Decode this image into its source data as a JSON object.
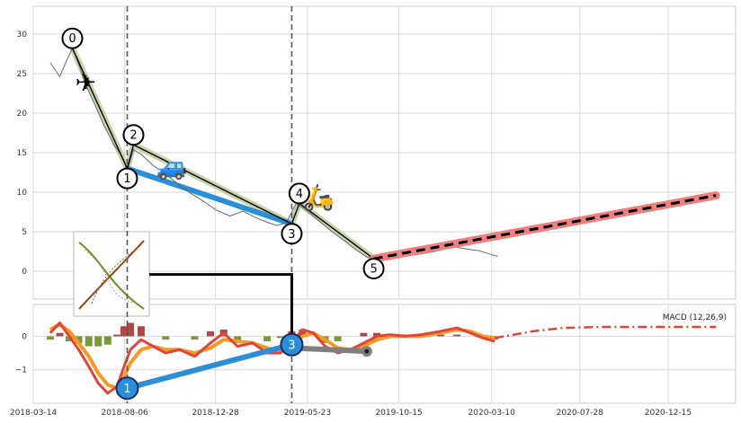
{
  "chart_data": {
    "type": "line",
    "x_ticks": [
      "2018-03-14",
      "2018-08-06",
      "2018-12-28",
      "2019-05-23",
      "2019-10-15",
      "2020-03-10",
      "2020-07-28",
      "2020-12-15"
    ],
    "x_range": [
      "2018-03-14",
      "2021-04-01"
    ],
    "top_panel": {
      "y_range": [
        -3.5,
        33.5
      ],
      "y_ticks": [
        0,
        5,
        10,
        15,
        20,
        25,
        30
      ],
      "grid": true,
      "price_series_color": "#5a6a7e",
      "price_series": [
        {
          "x": "2018-04-10",
          "y": 26.4
        },
        {
          "x": "2018-04-25",
          "y": 24.6
        },
        {
          "x": "2018-05-05",
          "y": 26.5
        },
        {
          "x": "2018-05-15",
          "y": 28.2
        },
        {
          "x": "2018-05-25",
          "y": 26.2
        },
        {
          "x": "2018-06-05",
          "y": 23.6
        },
        {
          "x": "2018-06-20",
          "y": 21.0
        },
        {
          "x": "2018-07-05",
          "y": 18.3
        },
        {
          "x": "2018-07-20",
          "y": 16.0
        },
        {
          "x": "2018-08-01",
          "y": 14.6
        },
        {
          "x": "2018-08-10",
          "y": 12.8
        },
        {
          "x": "2018-08-20",
          "y": 15.4
        },
        {
          "x": "2018-09-01",
          "y": 14.8
        },
        {
          "x": "2018-09-20",
          "y": 13.4
        },
        {
          "x": "2018-10-10",
          "y": 12.3
        },
        {
          "x": "2018-10-30",
          "y": 11.0
        },
        {
          "x": "2018-11-20",
          "y": 9.8
        },
        {
          "x": "2018-12-10",
          "y": 8.8
        },
        {
          "x": "2018-12-28",
          "y": 7.8
        },
        {
          "x": "2019-01-20",
          "y": 7.0
        },
        {
          "x": "2019-02-10",
          "y": 7.6
        },
        {
          "x": "2019-03-01",
          "y": 6.8
        },
        {
          "x": "2019-03-20",
          "y": 6.2
        },
        {
          "x": "2019-04-05",
          "y": 5.8
        },
        {
          "x": "2019-04-20",
          "y": 6.2
        },
        {
          "x": "2019-05-05",
          "y": 8.6
        },
        {
          "x": "2019-05-20",
          "y": 7.8
        },
        {
          "x": "2019-06-10",
          "y": 6.4
        },
        {
          "x": "2019-07-01",
          "y": 5.0
        },
        {
          "x": "2019-07-20",
          "y": 3.9
        },
        {
          "x": "2019-08-05",
          "y": 2.9
        },
        {
          "x": "2019-08-25",
          "y": 1.8
        },
        {
          "x": "2019-09-10",
          "y": 1.6
        },
        {
          "x": "2019-09-25",
          "y": 2.0
        },
        {
          "x": "2019-10-15",
          "y": 2.2
        },
        {
          "x": "2019-11-10",
          "y": 2.1
        },
        {
          "x": "2019-12-10",
          "y": 2.5
        },
        {
          "x": "2020-01-10",
          "y": 3.1
        },
        {
          "x": "2020-02-01",
          "y": 2.8
        },
        {
          "x": "2020-02-20",
          "y": 2.6
        },
        {
          "x": "2020-03-10",
          "y": 2.1
        },
        {
          "x": "2020-03-20",
          "y": 1.9
        }
      ],
      "pattern_points": [
        {
          "label": "0",
          "x": "2018-05-15",
          "y": 28.2
        },
        {
          "label": "1",
          "x": "2018-08-10",
          "y": 13.0
        },
        {
          "label": "2",
          "x": "2018-08-20",
          "y": 16.0
        },
        {
          "label": "3",
          "x": "2019-04-28",
          "y": 6.0
        },
        {
          "label": "4",
          "x": "2019-05-10",
          "y": 8.6
        },
        {
          "label": "5",
          "x": "2019-09-05",
          "y": 1.6
        }
      ],
      "pattern_label_offsets_note": "",
      "blue_segment": [
        {
          "x": "2018-08-10",
          "y": 13.0
        },
        {
          "x": "2019-04-28",
          "y": 6.0
        }
      ],
      "forecast": [
        {
          "x": "2019-09-05",
          "y": 1.6
        },
        {
          "x": "2021-03-01",
          "y": 9.6
        }
      ],
      "vertical_markers": [
        "2018-08-10",
        "2019-04-28"
      ],
      "icons": [
        "airplane-icon",
        "car-icon",
        "scooter-icon"
      ]
    },
    "bottom_panel": {
      "y_range": [
        -2.0,
        0.95
      ],
      "y_ticks": [
        0,
        -1
      ],
      "legend_text": "MACD (12,26,9)",
      "legend_placement": "top-right",
      "macd": [
        {
          "x": "2018-04-10",
          "y": 0.1
        },
        {
          "x": "2018-04-25",
          "y": 0.4
        },
        {
          "x": "2018-05-10",
          "y": 0.0
        },
        {
          "x": "2018-05-25",
          "y": -0.4
        },
        {
          "x": "2018-06-10",
          "y": -0.9
        },
        {
          "x": "2018-06-25",
          "y": -1.4
        },
        {
          "x": "2018-07-10",
          "y": -1.7
        },
        {
          "x": "2018-07-25",
          "y": -1.5
        },
        {
          "x": "2018-08-05",
          "y": -0.9
        },
        {
          "x": "2018-08-15",
          "y": -0.4
        },
        {
          "x": "2018-09-01",
          "y": -0.1
        },
        {
          "x": "2018-09-20",
          "y": -0.3
        },
        {
          "x": "2018-10-10",
          "y": -0.5
        },
        {
          "x": "2018-11-01",
          "y": -0.4
        },
        {
          "x": "2018-11-25",
          "y": -0.6
        },
        {
          "x": "2018-12-20",
          "y": -0.2
        },
        {
          "x": "2019-01-10",
          "y": 0.1
        },
        {
          "x": "2019-02-01",
          "y": -0.3
        },
        {
          "x": "2019-02-25",
          "y": -0.2
        },
        {
          "x": "2019-03-20",
          "y": -0.5
        },
        {
          "x": "2019-04-10",
          "y": -0.5
        },
        {
          "x": "2019-04-28",
          "y": -0.2
        },
        {
          "x": "2019-05-15",
          "y": 0.2
        },
        {
          "x": "2019-06-01",
          "y": 0.1
        },
        {
          "x": "2019-06-20",
          "y": -0.3
        },
        {
          "x": "2019-07-10",
          "y": -0.5
        },
        {
          "x": "2019-07-30",
          "y": -0.4
        },
        {
          "x": "2019-08-20",
          "y": -0.2
        },
        {
          "x": "2019-09-10",
          "y": 0.0
        },
        {
          "x": "2019-10-01",
          "y": 0.05
        },
        {
          "x": "2019-10-25",
          "y": 0.0
        },
        {
          "x": "2019-11-20",
          "y": 0.05
        },
        {
          "x": "2019-12-20",
          "y": 0.15
        },
        {
          "x": "2020-01-15",
          "y": 0.25
        },
        {
          "x": "2020-02-05",
          "y": 0.1
        },
        {
          "x": "2020-02-25",
          "y": -0.05
        },
        {
          "x": "2020-03-15",
          "y": -0.15
        }
      ],
      "signal": [
        {
          "x": "2018-04-10",
          "y": 0.2
        },
        {
          "x": "2018-04-25",
          "y": 0.35
        },
        {
          "x": "2018-05-10",
          "y": 0.15
        },
        {
          "x": "2018-05-25",
          "y": -0.2
        },
        {
          "x": "2018-06-10",
          "y": -0.6
        },
        {
          "x": "2018-06-25",
          "y": -1.1
        },
        {
          "x": "2018-07-10",
          "y": -1.45
        },
        {
          "x": "2018-07-25",
          "y": -1.55
        },
        {
          "x": "2018-08-05",
          "y": -1.2
        },
        {
          "x": "2018-08-15",
          "y": -0.8
        },
        {
          "x": "2018-09-01",
          "y": -0.4
        },
        {
          "x": "2018-09-20",
          "y": -0.3
        },
        {
          "x": "2018-10-10",
          "y": -0.4
        },
        {
          "x": "2018-11-01",
          "y": -0.4
        },
        {
          "x": "2018-11-25",
          "y": -0.5
        },
        {
          "x": "2018-12-20",
          "y": -0.35
        },
        {
          "x": "2019-01-10",
          "y": -0.1
        },
        {
          "x": "2019-02-01",
          "y": -0.15
        },
        {
          "x": "2019-02-25",
          "y": -0.2
        },
        {
          "x": "2019-03-20",
          "y": -0.35
        },
        {
          "x": "2019-04-10",
          "y": -0.45
        },
        {
          "x": "2019-04-28",
          "y": -0.35
        },
        {
          "x": "2019-05-15",
          "y": 0.0
        },
        {
          "x": "2019-06-01",
          "y": 0.1
        },
        {
          "x": "2019-06-20",
          "y": -0.1
        },
        {
          "x": "2019-07-10",
          "y": -0.35
        },
        {
          "x": "2019-07-30",
          "y": -0.4
        },
        {
          "x": "2019-08-20",
          "y": -0.3
        },
        {
          "x": "2019-09-10",
          "y": -0.1
        },
        {
          "x": "2019-10-01",
          "y": 0.0
        },
        {
          "x": "2019-10-25",
          "y": 0.0
        },
        {
          "x": "2019-11-20",
          "y": 0.0
        },
        {
          "x": "2019-12-20",
          "y": 0.1
        },
        {
          "x": "2020-01-15",
          "y": 0.2
        },
        {
          "x": "2020-02-05",
          "y": 0.15
        },
        {
          "x": "2020-02-25",
          "y": 0.0
        },
        {
          "x": "2020-03-15",
          "y": -0.05
        }
      ],
      "signal_forecast": [
        {
          "x": "2020-03-15",
          "y": -0.05
        },
        {
          "x": "2020-05-15",
          "y": 0.15
        },
        {
          "x": "2020-07-01",
          "y": 0.25
        },
        {
          "x": "2020-09-01",
          "y": 0.28
        },
        {
          "x": "2021-03-01",
          "y": 0.28
        }
      ],
      "histogram": [
        {
          "x": "2018-04-10",
          "y": -0.1
        },
        {
          "x": "2018-04-25",
          "y": 0.1
        },
        {
          "x": "2018-05-10",
          "y": -0.15
        },
        {
          "x": "2018-05-25",
          "y": -0.2
        },
        {
          "x": "2018-06-10",
          "y": -0.3
        },
        {
          "x": "2018-06-25",
          "y": -0.3
        },
        {
          "x": "2018-07-10",
          "y": -0.25
        },
        {
          "x": "2018-07-25",
          "y": 0.05
        },
        {
          "x": "2018-08-05",
          "y": 0.3
        },
        {
          "x": "2018-08-15",
          "y": 0.4
        },
        {
          "x": "2018-09-01",
          "y": 0.3
        },
        {
          "x": "2018-09-20",
          "y": 0.0
        },
        {
          "x": "2018-10-10",
          "y": -0.1
        },
        {
          "x": "2018-11-01",
          "y": 0.0
        },
        {
          "x": "2018-11-25",
          "y": -0.1
        },
        {
          "x": "2018-12-20",
          "y": 0.15
        },
        {
          "x": "2019-01-10",
          "y": 0.2
        },
        {
          "x": "2019-02-01",
          "y": -0.15
        },
        {
          "x": "2019-02-25",
          "y": 0.0
        },
        {
          "x": "2019-03-20",
          "y": -0.15
        },
        {
          "x": "2019-04-10",
          "y": -0.05
        },
        {
          "x": "2019-04-28",
          "y": 0.15
        },
        {
          "x": "2019-05-15",
          "y": 0.2
        },
        {
          "x": "2019-06-01",
          "y": 0.0
        },
        {
          "x": "2019-06-20",
          "y": -0.2
        },
        {
          "x": "2019-07-10",
          "y": -0.15
        },
        {
          "x": "2019-07-30",
          "y": 0.0
        },
        {
          "x": "2019-08-20",
          "y": 0.1
        },
        {
          "x": "2019-09-10",
          "y": 0.1
        },
        {
          "x": "2019-10-01",
          "y": 0.05
        },
        {
          "x": "2019-11-20",
          "y": 0.05
        },
        {
          "x": "2019-12-20",
          "y": 0.05
        },
        {
          "x": "2020-01-15",
          "y": 0.05
        },
        {
          "x": "2020-02-25",
          "y": -0.05
        },
        {
          "x": "2020-03-15",
          "y": -0.1
        }
      ],
      "pattern_points": [
        {
          "label": "1",
          "x": "2018-08-10",
          "y": -1.55
        },
        {
          "label": "3",
          "x": "2019-04-28",
          "y": -0.25
        }
      ],
      "grey_segment": [
        {
          "x": "2019-04-28",
          "y": -0.35
        },
        {
          "x": "2019-08-25",
          "y": -0.45
        }
      ]
    },
    "colors": {
      "price": "#5a6a7e",
      "pattern": "#000000",
      "pattern_halo": "#c8d4a8",
      "blue": "#2a8fd6",
      "forecast": "#000000",
      "forecast_halo": "#f08080",
      "vertical": "#4a5a6a",
      "macd": "#e0453a",
      "signal": "#f59a23",
      "hist_pos": "#a83232",
      "hist_neg": "#6b8e23",
      "grey": "#808080",
      "marker_fill_top": "#ffffff",
      "marker_fill_bottom": "#2a8fd6",
      "grid": "#d8d8d8"
    }
  }
}
